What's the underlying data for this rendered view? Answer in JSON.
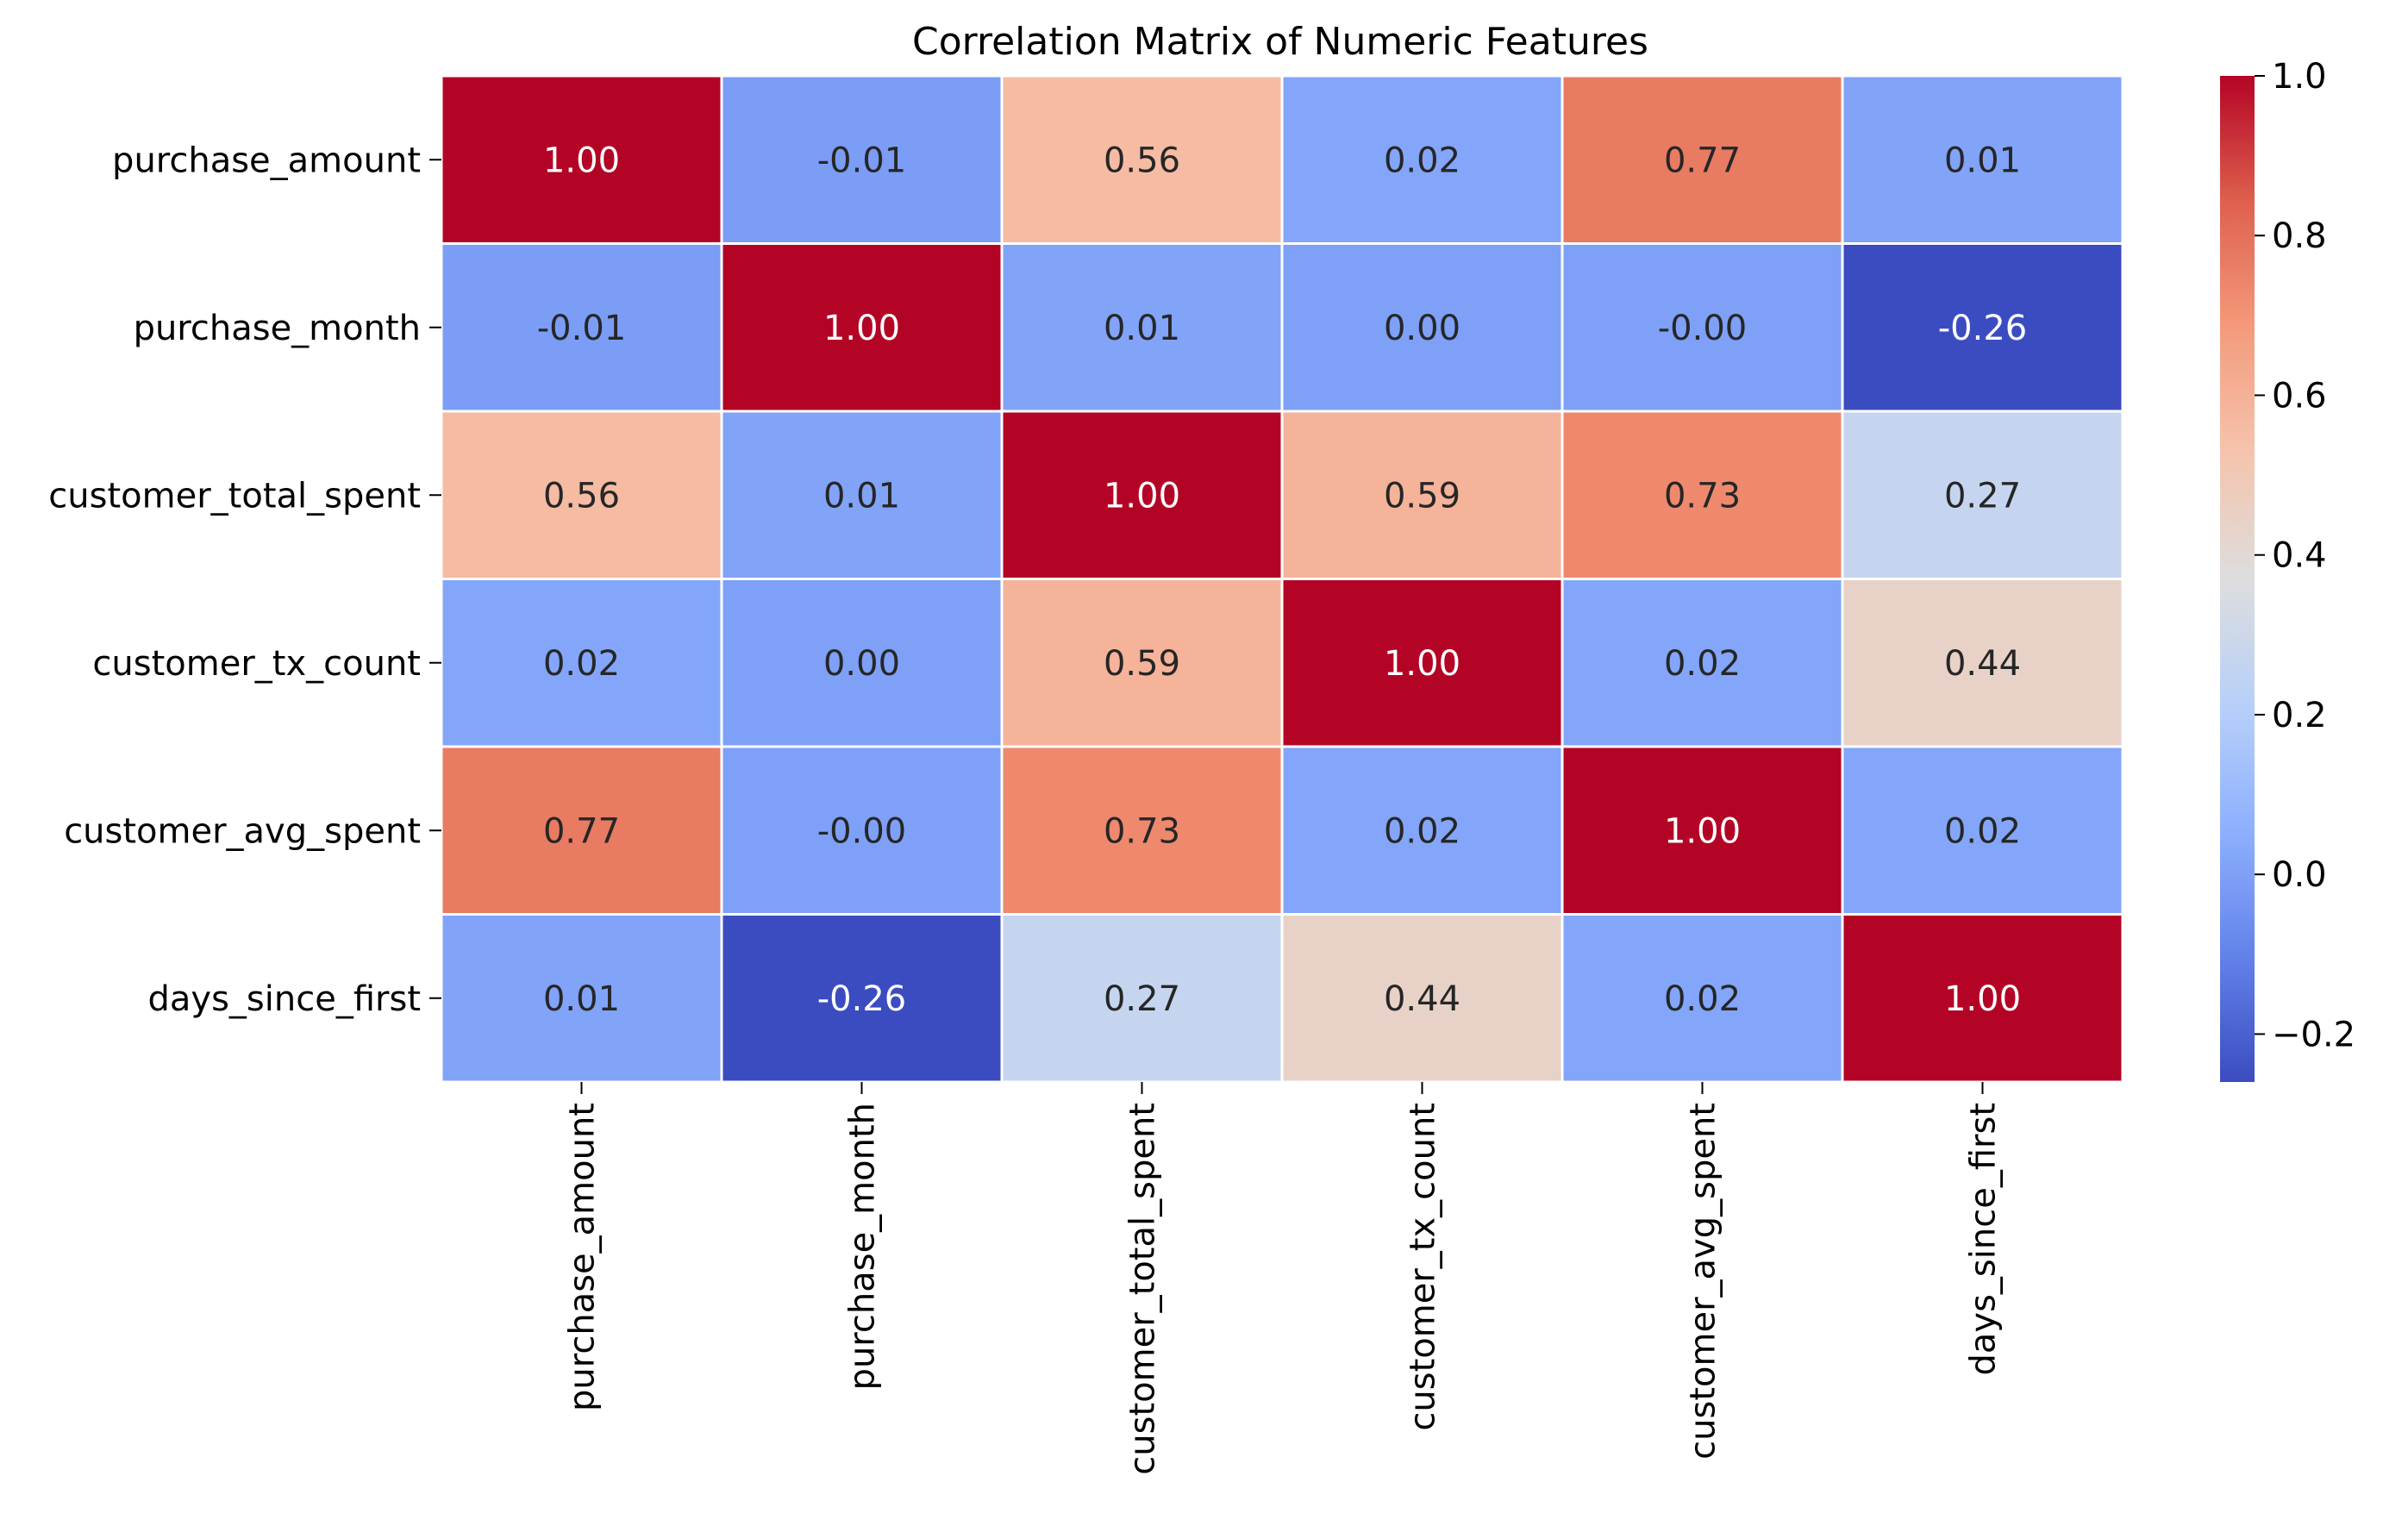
{
  "chart_data": {
    "type": "heatmap",
    "title": "Correlation Matrix of Numeric Features",
    "xlabel": "",
    "ylabel": "",
    "row_labels": [
      "purchase_amount",
      "purchase_month",
      "customer_total_spent",
      "customer_tx_count",
      "customer_avg_spent",
      "days_since_first"
    ],
    "col_labels": [
      "purchase_amount",
      "purchase_month",
      "customer_total_spent",
      "customer_tx_count",
      "customer_avg_spent",
      "days_since_first"
    ],
    "values": [
      [
        1.0,
        -0.01,
        0.56,
        0.02,
        0.77,
        0.01
      ],
      [
        -0.01,
        1.0,
        0.01,
        0.0,
        -0.0,
        -0.26
      ],
      [
        0.56,
        0.01,
        1.0,
        0.59,
        0.73,
        0.27
      ],
      [
        0.02,
        0.0,
        0.59,
        1.0,
        0.02,
        0.44
      ],
      [
        0.77,
        -0.0,
        0.73,
        0.02,
        1.0,
        0.02
      ],
      [
        0.01,
        -0.26,
        0.27,
        0.44,
        0.02,
        1.0
      ]
    ],
    "cell_labels": [
      [
        "1.00",
        "-0.01",
        "0.56",
        "0.02",
        "0.77",
        "0.01"
      ],
      [
        "-0.01",
        "1.00",
        "0.01",
        "0.00",
        "-0.00",
        "-0.26"
      ],
      [
        "0.56",
        "0.01",
        "1.00",
        "0.59",
        "0.73",
        "0.27"
      ],
      [
        "0.02",
        "0.00",
        "0.59",
        "1.00",
        "0.02",
        "0.44"
      ],
      [
        "0.77",
        "-0.00",
        "0.73",
        "0.02",
        "1.00",
        "0.02"
      ],
      [
        "0.01",
        "-0.26",
        "0.27",
        "0.44",
        "0.02",
        "1.00"
      ]
    ],
    "colormap": "coolwarm",
    "color_range": [
      -0.26,
      1.0
    ],
    "colorbar_ticks": [
      -0.2,
      0.0,
      0.2,
      0.4,
      0.6,
      0.8,
      1.0
    ],
    "colorbar_tick_labels": [
      "−0.2",
      "0.0",
      "0.2",
      "0.4",
      "0.6",
      "0.8",
      "1.0"
    ],
    "grid": true,
    "grid_color": "#ffffff",
    "legend": "colorbar-right"
  }
}
